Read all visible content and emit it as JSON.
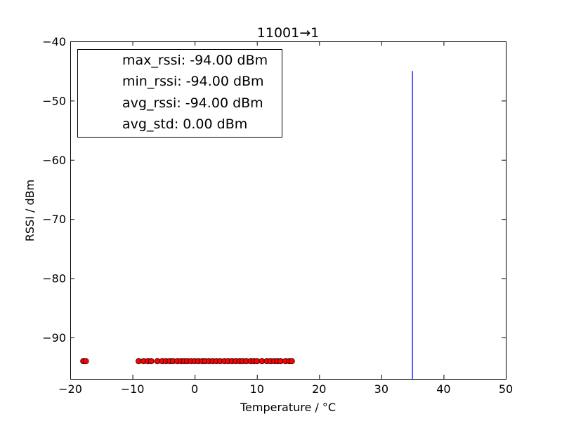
{
  "chart_data": {
    "type": "scatter",
    "title": "11001→1",
    "xlabel": "Temperature / °C",
    "ylabel": "RSSI / dBm",
    "xlim": [
      -20,
      50
    ],
    "ylim": [
      -97,
      -40
    ],
    "xticks": [
      -20,
      -10,
      0,
      10,
      20,
      30,
      40,
      50
    ],
    "yticks": [
      -40,
      -50,
      -60,
      -70,
      -80,
      -90
    ],
    "xtick_labels": [
      "−20",
      "−10",
      "0",
      "10",
      "20",
      "30",
      "40",
      "50"
    ],
    "ytick_labels": [
      "−40",
      "−50",
      "−60",
      "−70",
      "−80",
      "−90"
    ],
    "grid": false,
    "legend_placement": "upper-left",
    "legend_entries": [
      "max_rssi: -94.00 dBm",
      "min_rssi: -94.00 dBm",
      "avg_rssi: -94.00 dBm",
      "avg_std: 0.00 dBm"
    ],
    "series": [
      {
        "kind": "scatter",
        "color": "#ff0000",
        "x": [
          -17.9,
          -17.5,
          -9.0,
          -8.2,
          -7.5,
          -7.0,
          -6.0,
          -5.2,
          -4.6,
          -4.0,
          -3.5,
          -2.8,
          -2.2,
          -1.7,
          -1.2,
          -0.6,
          0.0,
          0.6,
          1.2,
          1.7,
          2.3,
          2.9,
          3.5,
          4.1,
          4.8,
          5.4,
          6.0,
          6.6,
          7.2,
          7.7,
          8.3,
          9.0,
          9.5,
          10.0,
          10.8,
          11.6,
          12.2,
          12.8,
          13.3,
          13.8,
          14.6,
          15.2,
          15.6
        ],
        "y": [
          -94,
          -94,
          -94,
          -94,
          -94,
          -94,
          -94,
          -94,
          -94,
          -94,
          -94,
          -94,
          -94,
          -94,
          -94,
          -94,
          -94,
          -94,
          -94,
          -94,
          -94,
          -94,
          -94,
          -94,
          -94,
          -94,
          -94,
          -94,
          -94,
          -94,
          -94,
          -94,
          -94,
          -94,
          -94,
          -94,
          -94,
          -94,
          -94,
          -94,
          -94,
          -94,
          -94
        ]
      },
      {
        "kind": "line",
        "color": "#0000ff",
        "x": [
          35,
          35
        ],
        "y": [
          -97,
          -45
        ]
      }
    ]
  }
}
